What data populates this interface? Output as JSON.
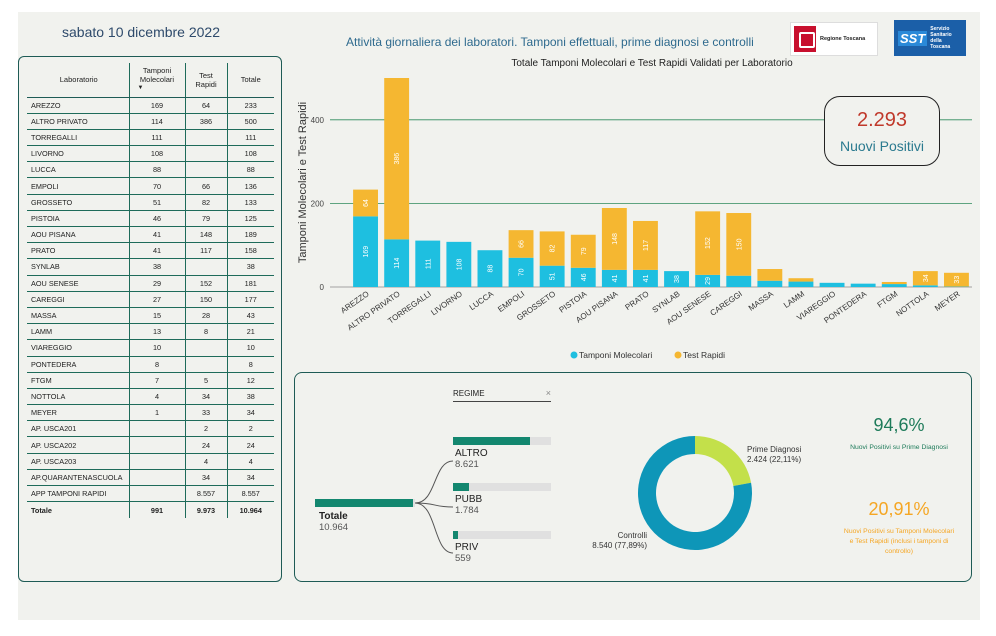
{
  "header": {
    "date": "sabato 10 dicembre 2022",
    "title": "Attività giornaliera dei laboratori. Tamponi effettuali, prime diagnosi e controlli",
    "logo_rt": "Regione Toscana",
    "logo_sst": "SST",
    "logo_sst_text": "Servizio Sanitario della Toscana"
  },
  "table": {
    "headers": [
      "Laboratorio",
      "Tamponi Molecolari",
      "Test Rapidi",
      "Totale"
    ],
    "sort_indicator": "▼",
    "rows": [
      [
        "AREZZO",
        "169",
        "64",
        "233"
      ],
      [
        "ALTRO PRIVATO",
        "114",
        "386",
        "500"
      ],
      [
        "TORREGALLI",
        "111",
        "",
        "111"
      ],
      [
        "LIVORNO",
        "108",
        "",
        "108"
      ],
      [
        "LUCCA",
        "88",
        "",
        "88"
      ],
      [
        "EMPOLI",
        "70",
        "66",
        "136"
      ],
      [
        "GROSSETO",
        "51",
        "82",
        "133"
      ],
      [
        "PISTOIA",
        "46",
        "79",
        "125"
      ],
      [
        "AOU PISANA",
        "41",
        "148",
        "189"
      ],
      [
        "PRATO",
        "41",
        "117",
        "158"
      ],
      [
        "SYNLAB",
        "38",
        "",
        "38"
      ],
      [
        "AOU SENESE",
        "29",
        "152",
        "181"
      ],
      [
        "CAREGGI",
        "27",
        "150",
        "177"
      ],
      [
        "MASSA",
        "15",
        "28",
        "43"
      ],
      [
        "LAMM",
        "13",
        "8",
        "21"
      ],
      [
        "VIAREGGIO",
        "10",
        "",
        "10"
      ],
      [
        "PONTEDERA",
        "8",
        "",
        "8"
      ],
      [
        "FTGM",
        "7",
        "5",
        "12"
      ],
      [
        "NOTTOLA",
        "4",
        "34",
        "38"
      ],
      [
        "MEYER",
        "1",
        "33",
        "34"
      ],
      [
        "AP. USCA201",
        "",
        "2",
        "2"
      ],
      [
        "AP. USCA202",
        "",
        "24",
        "24"
      ],
      [
        "AP. USCA203",
        "",
        "4",
        "4"
      ],
      [
        "AP.QUARANTENASCUOLA",
        "",
        "34",
        "34"
      ],
      [
        "APP TAMPONI RAPIDI",
        "",
        "8.557",
        "8.557"
      ]
    ],
    "total": [
      "Totale",
      "991",
      "9.973",
      "10.964"
    ]
  },
  "kpi": {
    "value": "2.293",
    "label": "Nuovi Positivi"
  },
  "chart_data": {
    "type": "bar",
    "title": "Totale Tamponi Molecolari e Test Rapidi Validati per Laboratorio",
    "ylabel": "Tamponi Molecolari e Test Rapidi",
    "xlabel": "",
    "ylim": [
      0,
      500
    ],
    "yticks": [
      0,
      200,
      400
    ],
    "stacked": true,
    "legend_position": "bottom",
    "categories": [
      "AREZZO",
      "ALTRO PRIVATO",
      "TORREGALLI",
      "LIVORNO",
      "LUCCA",
      "EMPOLI",
      "GROSSETO",
      "PISTOIA",
      "AOU PISANA",
      "PRATO",
      "SYNLAB",
      "AOU SENESE",
      "CAREGGI",
      "MASSA",
      "LAMM",
      "VIAREGGIO",
      "PONTEDERA",
      "FTGM",
      "NOTTOLA",
      "MEYER"
    ],
    "series": [
      {
        "name": "Tamponi Molecolari",
        "color": "#1ebfe0",
        "values": [
          169,
          114,
          111,
          108,
          88,
          70,
          51,
          46,
          41,
          41,
          38,
          29,
          27,
          15,
          13,
          10,
          8,
          7,
          4,
          1
        ]
      },
      {
        "name": "Test Rapidi",
        "color": "#f5b731",
        "values": [
          64,
          386,
          0,
          0,
          0,
          66,
          82,
          79,
          148,
          117,
          0,
          152,
          150,
          28,
          8,
          0,
          0,
          5,
          34,
          33
        ]
      }
    ]
  },
  "regime": {
    "header": "REGIME",
    "close": "×",
    "total_label": "Totale",
    "total_value": "10.964",
    "total": 10964,
    "items": [
      {
        "label": "ALTRO",
        "value": "8.621",
        "num": 8621
      },
      {
        "label": "PUBB",
        "value": "1.784",
        "num": 1784
      },
      {
        "label": "PRIV",
        "value": "559",
        "num": 559
      }
    ]
  },
  "donut": {
    "slices": [
      {
        "label": "Prime Diagnosi",
        "value_text": "2.424 (22,11%)",
        "value": 2424,
        "color": "#c3e04a"
      },
      {
        "label": "Controlli",
        "value_text": "8.540 (77,89%)",
        "value": 8540,
        "color": "#0e96b8"
      }
    ]
  },
  "stats": {
    "pct1": "94,6%",
    "pct1_label": "Nuovi Positivi su Prime Diagnosi",
    "pct1_color": "#1e7b5a",
    "pct2": "20,91%",
    "pct2_label": "Nuovi Positivi su Tamponi Molecolari e Test Rapidi (inclusi i tamponi di controllo)",
    "pct2_color": "#f5a623"
  }
}
